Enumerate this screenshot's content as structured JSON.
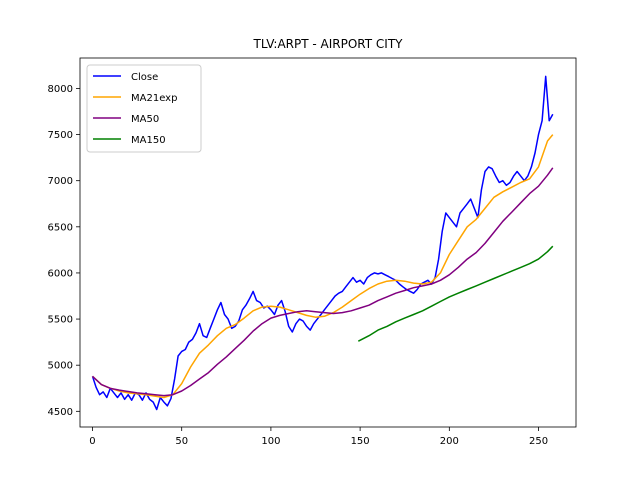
{
  "chart_data": {
    "type": "line",
    "title": "TLV:ARPT - AIRPORT CITY",
    "xlabel": "",
    "ylabel": "",
    "xlim": [
      -7,
      271
    ],
    "ylim": [
      4330,
      8330
    ],
    "xticks": [
      0,
      50,
      100,
      150,
      200,
      250
    ],
    "yticks": [
      4500,
      5000,
      5500,
      6000,
      6500,
      7000,
      7500,
      8000
    ],
    "grid": false,
    "legend_position": "top-left",
    "series": [
      {
        "name": "Close",
        "color": "#0000ff",
        "points": [
          [
            0,
            4880
          ],
          [
            2,
            4760
          ],
          [
            4,
            4680
          ],
          [
            6,
            4710
          ],
          [
            8,
            4650
          ],
          [
            10,
            4750
          ],
          [
            12,
            4700
          ],
          [
            14,
            4650
          ],
          [
            16,
            4700
          ],
          [
            18,
            4630
          ],
          [
            20,
            4680
          ],
          [
            22,
            4620
          ],
          [
            24,
            4700
          ],
          [
            26,
            4680
          ],
          [
            28,
            4620
          ],
          [
            30,
            4700
          ],
          [
            32,
            4630
          ],
          [
            34,
            4600
          ],
          [
            36,
            4520
          ],
          [
            38,
            4650
          ],
          [
            40,
            4600
          ],
          [
            42,
            4560
          ],
          [
            44,
            4640
          ],
          [
            46,
            4850
          ],
          [
            48,
            5100
          ],
          [
            50,
            5150
          ],
          [
            52,
            5170
          ],
          [
            54,
            5250
          ],
          [
            56,
            5280
          ],
          [
            58,
            5350
          ],
          [
            60,
            5450
          ],
          [
            62,
            5320
          ],
          [
            64,
            5300
          ],
          [
            66,
            5400
          ],
          [
            68,
            5500
          ],
          [
            70,
            5600
          ],
          [
            72,
            5680
          ],
          [
            74,
            5550
          ],
          [
            76,
            5500
          ],
          [
            78,
            5400
          ],
          [
            80,
            5420
          ],
          [
            82,
            5480
          ],
          [
            84,
            5600
          ],
          [
            86,
            5650
          ],
          [
            88,
            5720
          ],
          [
            90,
            5800
          ],
          [
            92,
            5700
          ],
          [
            94,
            5680
          ],
          [
            96,
            5620
          ],
          [
            98,
            5640
          ],
          [
            100,
            5600
          ],
          [
            102,
            5550
          ],
          [
            104,
            5650
          ],
          [
            106,
            5700
          ],
          [
            108,
            5580
          ],
          [
            110,
            5420
          ],
          [
            112,
            5360
          ],
          [
            114,
            5450
          ],
          [
            116,
            5500
          ],
          [
            118,
            5480
          ],
          [
            120,
            5420
          ],
          [
            122,
            5380
          ],
          [
            124,
            5450
          ],
          [
            126,
            5500
          ],
          [
            128,
            5550
          ],
          [
            130,
            5600
          ],
          [
            132,
            5650
          ],
          [
            134,
            5700
          ],
          [
            136,
            5750
          ],
          [
            138,
            5780
          ],
          [
            140,
            5800
          ],
          [
            142,
            5850
          ],
          [
            144,
            5900
          ],
          [
            146,
            5950
          ],
          [
            148,
            5900
          ],
          [
            150,
            5920
          ],
          [
            152,
            5880
          ],
          [
            154,
            5950
          ],
          [
            156,
            5980
          ],
          [
            158,
            6000
          ],
          [
            160,
            5990
          ],
          [
            162,
            6000
          ],
          [
            164,
            5980
          ],
          [
            166,
            5960
          ],
          [
            168,
            5940
          ],
          [
            170,
            5920
          ],
          [
            172,
            5880
          ],
          [
            174,
            5850
          ],
          [
            176,
            5820
          ],
          [
            178,
            5800
          ],
          [
            180,
            5780
          ],
          [
            182,
            5820
          ],
          [
            184,
            5880
          ],
          [
            186,
            5900
          ],
          [
            188,
            5920
          ],
          [
            190,
            5880
          ],
          [
            192,
            5950
          ],
          [
            194,
            6150
          ],
          [
            196,
            6450
          ],
          [
            198,
            6650
          ],
          [
            200,
            6600
          ],
          [
            202,
            6550
          ],
          [
            204,
            6500
          ],
          [
            206,
            6650
          ],
          [
            208,
            6700
          ],
          [
            210,
            6750
          ],
          [
            212,
            6800
          ],
          [
            214,
            6700
          ],
          [
            216,
            6600
          ],
          [
            218,
            6900
          ],
          [
            220,
            7100
          ],
          [
            222,
            7150
          ],
          [
            224,
            7130
          ],
          [
            226,
            7050
          ],
          [
            228,
            6980
          ],
          [
            230,
            7000
          ],
          [
            232,
            6950
          ],
          [
            234,
            6980
          ],
          [
            236,
            7050
          ],
          [
            238,
            7100
          ],
          [
            240,
            7050
          ],
          [
            242,
            7000
          ],
          [
            244,
            7050
          ],
          [
            246,
            7150
          ],
          [
            248,
            7300
          ],
          [
            250,
            7500
          ],
          [
            252,
            7650
          ],
          [
            254,
            8130
          ],
          [
            256,
            7650
          ],
          [
            258,
            7720
          ]
        ]
      },
      {
        "name": "MA21exp",
        "color": "#ffa500",
        "points": [
          [
            0,
            4880
          ],
          [
            5,
            4790
          ],
          [
            10,
            4750
          ],
          [
            15,
            4720
          ],
          [
            20,
            4700
          ],
          [
            25,
            4690
          ],
          [
            30,
            4680
          ],
          [
            35,
            4665
          ],
          [
            40,
            4650
          ],
          [
            45,
            4680
          ],
          [
            50,
            4800
          ],
          [
            55,
            4980
          ],
          [
            60,
            5130
          ],
          [
            65,
            5220
          ],
          [
            70,
            5320
          ],
          [
            75,
            5400
          ],
          [
            80,
            5440
          ],
          [
            85,
            5510
          ],
          [
            90,
            5590
          ],
          [
            95,
            5630
          ],
          [
            100,
            5640
          ],
          [
            105,
            5630
          ],
          [
            110,
            5600
          ],
          [
            115,
            5570
          ],
          [
            120,
            5540
          ],
          [
            125,
            5520
          ],
          [
            130,
            5530
          ],
          [
            135,
            5570
          ],
          [
            140,
            5630
          ],
          [
            145,
            5700
          ],
          [
            150,
            5770
          ],
          [
            155,
            5830
          ],
          [
            160,
            5880
          ],
          [
            165,
            5910
          ],
          [
            170,
            5920
          ],
          [
            175,
            5910
          ],
          [
            180,
            5890
          ],
          [
            185,
            5880
          ],
          [
            190,
            5900
          ],
          [
            195,
            6000
          ],
          [
            200,
            6200
          ],
          [
            205,
            6350
          ],
          [
            210,
            6500
          ],
          [
            215,
            6580
          ],
          [
            220,
            6700
          ],
          [
            225,
            6820
          ],
          [
            230,
            6880
          ],
          [
            235,
            6930
          ],
          [
            240,
            6980
          ],
          [
            245,
            7020
          ],
          [
            250,
            7150
          ],
          [
            255,
            7430
          ],
          [
            258,
            7500
          ]
        ]
      },
      {
        "name": "MA50",
        "color": "#800080",
        "points": [
          [
            0,
            4880
          ],
          [
            5,
            4790
          ],
          [
            10,
            4750
          ],
          [
            15,
            4730
          ],
          [
            20,
            4715
          ],
          [
            25,
            4700
          ],
          [
            30,
            4690
          ],
          [
            35,
            4680
          ],
          [
            40,
            4670
          ],
          [
            45,
            4680
          ],
          [
            50,
            4720
          ],
          [
            55,
            4780
          ],
          [
            60,
            4850
          ],
          [
            65,
            4920
          ],
          [
            70,
            5010
          ],
          [
            75,
            5090
          ],
          [
            80,
            5180
          ],
          [
            85,
            5270
          ],
          [
            90,
            5370
          ],
          [
            95,
            5450
          ],
          [
            100,
            5510
          ],
          [
            105,
            5540
          ],
          [
            110,
            5560
          ],
          [
            115,
            5580
          ],
          [
            120,
            5590
          ],
          [
            125,
            5580
          ],
          [
            130,
            5570
          ],
          [
            135,
            5560
          ],
          [
            140,
            5570
          ],
          [
            145,
            5590
          ],
          [
            150,
            5620
          ],
          [
            155,
            5650
          ],
          [
            160,
            5700
          ],
          [
            165,
            5740
          ],
          [
            170,
            5780
          ],
          [
            175,
            5810
          ],
          [
            180,
            5840
          ],
          [
            185,
            5860
          ],
          [
            190,
            5880
          ],
          [
            195,
            5920
          ],
          [
            200,
            5980
          ],
          [
            205,
            6060
          ],
          [
            210,
            6150
          ],
          [
            215,
            6220
          ],
          [
            220,
            6320
          ],
          [
            225,
            6440
          ],
          [
            230,
            6560
          ],
          [
            235,
            6660
          ],
          [
            240,
            6760
          ],
          [
            245,
            6860
          ],
          [
            250,
            6940
          ],
          [
            255,
            7060
          ],
          [
            258,
            7140
          ]
        ]
      },
      {
        "name": "MA150",
        "color": "#008000",
        "points": [
          [
            149,
            5260
          ],
          [
            155,
            5320
          ],
          [
            160,
            5380
          ],
          [
            165,
            5420
          ],
          [
            170,
            5470
          ],
          [
            175,
            5510
          ],
          [
            180,
            5550
          ],
          [
            185,
            5590
          ],
          [
            190,
            5640
          ],
          [
            195,
            5690
          ],
          [
            200,
            5740
          ],
          [
            205,
            5780
          ],
          [
            210,
            5820
          ],
          [
            215,
            5860
          ],
          [
            220,
            5900
          ],
          [
            225,
            5940
          ],
          [
            230,
            5980
          ],
          [
            235,
            6020
          ],
          [
            240,
            6060
          ],
          [
            245,
            6100
          ],
          [
            250,
            6150
          ],
          [
            255,
            6230
          ],
          [
            258,
            6290
          ]
        ]
      }
    ]
  }
}
